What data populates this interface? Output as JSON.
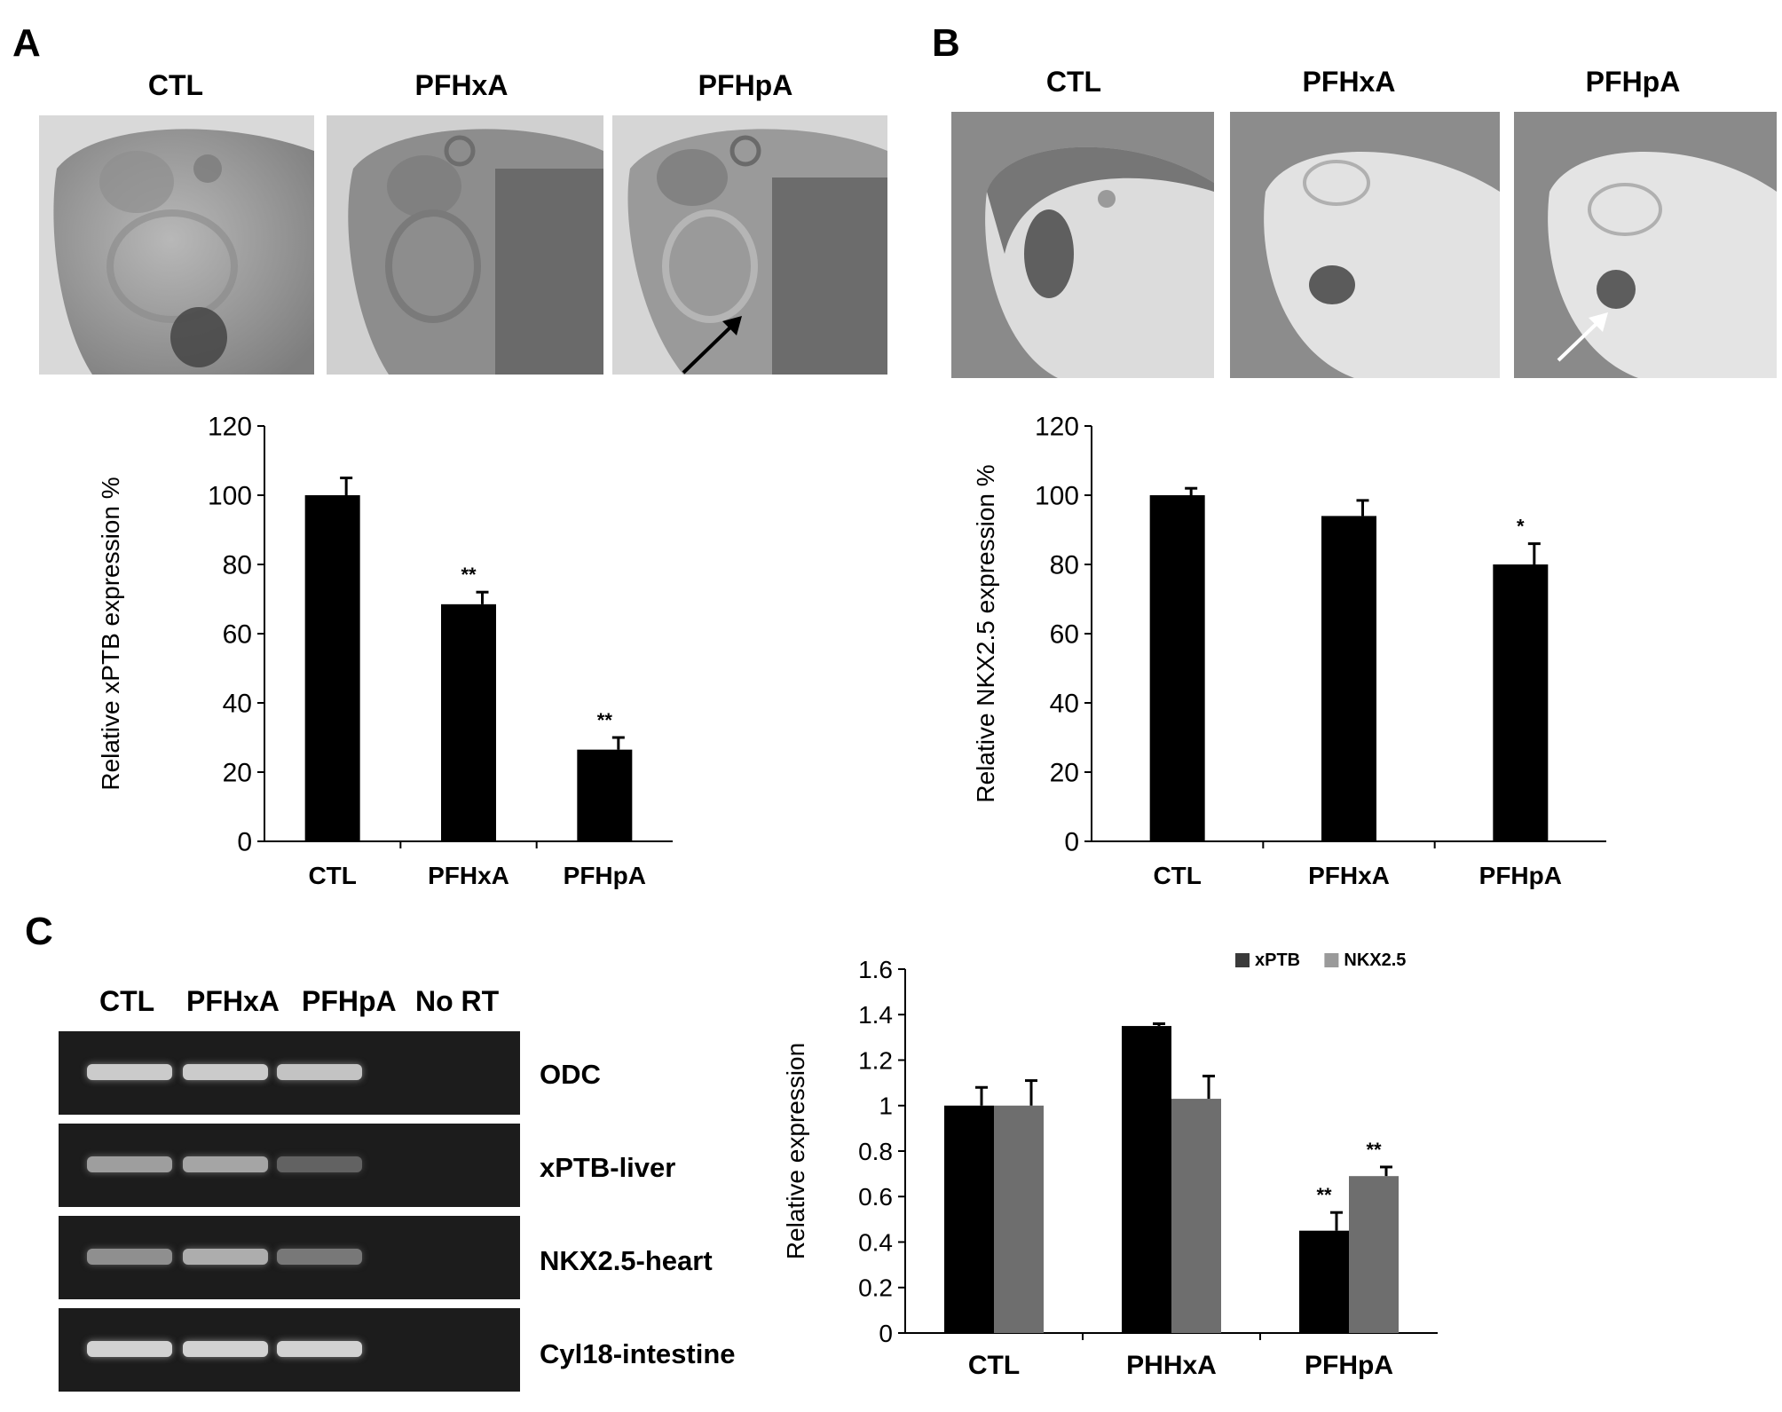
{
  "panels": {
    "A": {
      "letter": "A",
      "photo_titles": [
        "CTL",
        "PFHxA",
        "PFHpA"
      ]
    },
    "B": {
      "letter": "B",
      "photo_titles": [
        "CTL",
        "PFHxA",
        "PFHpA"
      ]
    },
    "C": {
      "letter": "C",
      "gel_lanes": [
        "CTL",
        "PFHxA",
        "PFHpA",
        "No RT"
      ],
      "gel_rows": [
        "ODC",
        "xPTB-liver",
        "NKX2.5-heart",
        "Cyl18-intestine"
      ],
      "gel_band_intensity": [
        [
          0.95,
          0.95,
          0.9,
          0
        ],
        [
          0.65,
          0.7,
          0.25,
          0
        ],
        [
          0.55,
          0.75,
          0.4,
          0
        ],
        [
          1.0,
          1.0,
          1.0,
          0
        ]
      ]
    }
  },
  "colors": {
    "bar_dark": "#000000",
    "bar_gray": "#6e6e6e",
    "legend_dark": "#3a3a3a",
    "legend_gray": "#9a9a9a"
  },
  "chart_data": [
    {
      "id": "A",
      "type": "bar",
      "categories": [
        "CTL",
        "PFHxA",
        "PFHpA"
      ],
      "values": [
        100,
        68.5,
        26.5
      ],
      "errors": [
        5,
        3.5,
        3.5
      ],
      "significance": [
        "",
        "**",
        "**"
      ],
      "ylabel": "Relative xPTB expression %",
      "ylim": [
        0,
        120
      ],
      "yticks": [
        "0",
        "20",
        "40",
        "60",
        "80",
        "100",
        "120"
      ],
      "grid": false
    },
    {
      "id": "B",
      "type": "bar",
      "categories": [
        "CTL",
        "PFHxA",
        "PFHpA"
      ],
      "values": [
        100,
        94,
        80
      ],
      "errors": [
        2,
        4.5,
        6
      ],
      "significance": [
        "",
        "",
        "*"
      ],
      "ylabel": "Relative NKX2.5 expression %",
      "ylim": [
        0,
        120
      ],
      "yticks": [
        "0",
        "20",
        "40",
        "60",
        "80",
        "100",
        "120"
      ],
      "grid": false
    },
    {
      "id": "C",
      "type": "bar",
      "categories": [
        "CTL",
        "PHHxA",
        "PFHpA"
      ],
      "series": [
        {
          "name": "xPTB",
          "values": [
            1.0,
            1.35,
            0.45
          ],
          "errors": [
            0.08,
            0.01,
            0.08
          ],
          "significance": [
            "",
            "",
            "**"
          ]
        },
        {
          "name": "NKX2.5",
          "values": [
            1.0,
            1.03,
            0.69
          ],
          "errors": [
            0.11,
            0.1,
            0.04
          ],
          "significance": [
            "",
            "",
            "**"
          ]
        }
      ],
      "ylabel": "Relative expression",
      "ylim": [
        0,
        1.6
      ],
      "yticks": [
        "0",
        "0.2",
        "0.4",
        "0.6",
        "0.8",
        "1",
        "1.2",
        "1.4",
        "1.6"
      ],
      "legend": "top-right",
      "grid": false
    }
  ]
}
